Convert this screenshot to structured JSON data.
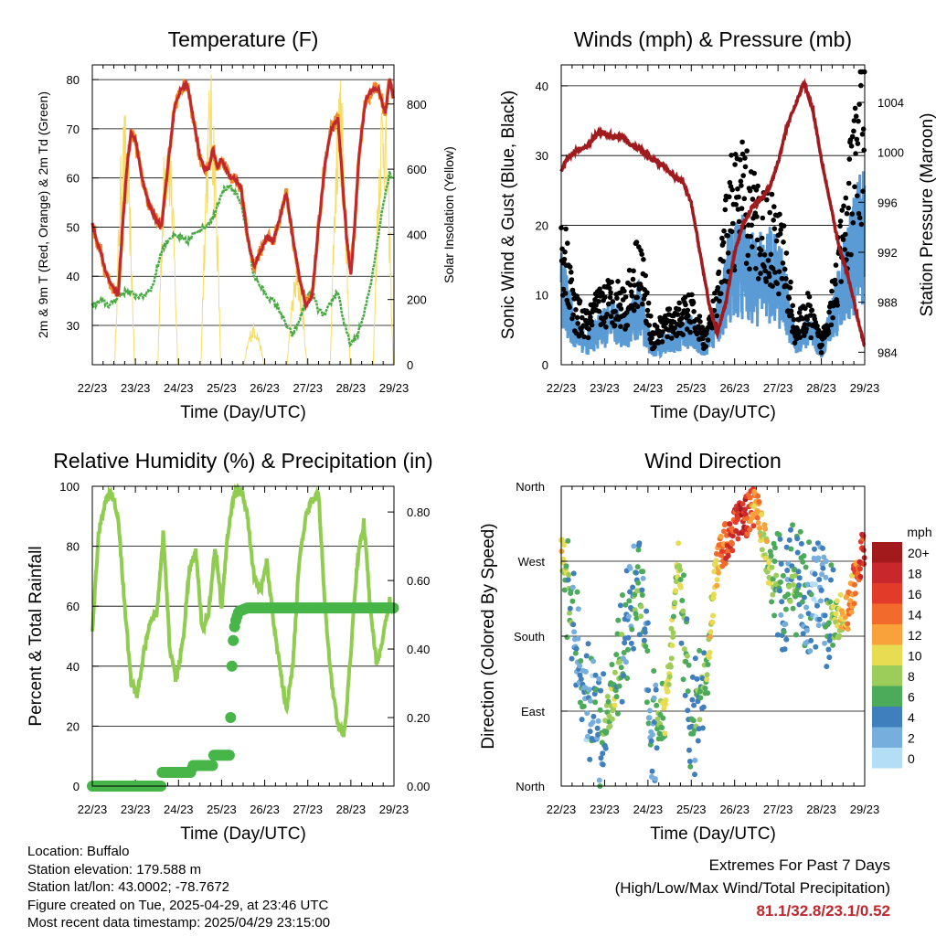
{
  "x_ticks": [
    "22/23",
    "23/23",
    "24/23",
    "25/23",
    "26/23",
    "27/23",
    "28/23",
    "29/23"
  ],
  "colors": {
    "t2m": "#c0282d",
    "t9m": "#f08a24",
    "td": "#4aab45",
    "solar": "#f5dd6a",
    "wind": "#5b9bd5",
    "gust": "#000000",
    "pressure": "#a11a1d",
    "rh": "#8fcc4f",
    "precip": "#47b548",
    "extremes": "#c1272d"
  },
  "chart_data": [
    {
      "type": "line",
      "title": "Temperature (F)",
      "xlabel": "Time (Day/UTC)",
      "ylabel": "2m & 9m T (Red, Orange) & 2m Td (Green)",
      "y2label": "Solar Insolation (Yellow)",
      "ylim": [
        22,
        83
      ],
      "y_ticks": [
        30,
        40,
        50,
        60,
        70,
        80
      ],
      "y2lim": [
        0,
        920
      ],
      "y2_ticks": [
        0,
        200,
        400,
        600,
        800
      ],
      "grid": "horizontal",
      "series": [
        {
          "key": "temperature",
          "x": [
            0,
            0.1,
            0.2,
            0.3,
            0.45,
            0.6,
            0.7,
            0.8,
            0.9,
            1.0,
            1.15,
            1.3,
            1.45,
            1.6,
            1.75,
            1.9,
            2.05,
            2.2,
            2.35,
            2.5,
            2.6,
            2.7,
            2.8,
            2.9,
            3.0,
            3.1,
            3.2,
            3.3,
            3.45,
            3.6,
            3.75,
            3.9,
            4.05,
            4.2,
            4.35,
            4.5,
            4.65,
            4.8,
            4.95,
            5.1,
            5.25,
            5.4,
            5.55,
            5.7,
            5.8,
            5.9,
            6.0,
            6.1,
            6.2,
            6.35,
            6.5,
            6.65,
            6.8,
            6.9,
            7.0
          ],
          "values": [
            51,
            47,
            45,
            41,
            38,
            36,
            50,
            62,
            69,
            68,
            60,
            55,
            52,
            50,
            62,
            74,
            78,
            79,
            72,
            64,
            62,
            62,
            66,
            62,
            64,
            62,
            60,
            60,
            58,
            48,
            42,
            45,
            48,
            47,
            52,
            57,
            48,
            40,
            34,
            36,
            50,
            63,
            70,
            72,
            60,
            48,
            40,
            52,
            66,
            76,
            78,
            78,
            73,
            80,
            76
          ]
        },
        {
          "key": "dewpoint",
          "x": [
            0,
            0.2,
            0.4,
            0.6,
            0.8,
            1.0,
            1.2,
            1.4,
            1.6,
            1.8,
            2.0,
            2.2,
            2.4,
            2.6,
            2.8,
            3.0,
            3.1,
            3.2,
            3.3,
            3.45,
            3.6,
            3.75,
            3.9,
            4.05,
            4.2,
            4.35,
            4.5,
            4.65,
            4.8,
            4.95,
            5.1,
            5.25,
            5.4,
            5.55,
            5.7,
            5.85,
            6.0,
            6.15,
            6.3,
            6.45,
            6.6,
            6.75,
            6.9,
            7.0
          ],
          "values": [
            34,
            35,
            34,
            36,
            37,
            36,
            36,
            38,
            45,
            48,
            48,
            47,
            49,
            50,
            52,
            57,
            58,
            58,
            57,
            55,
            48,
            40,
            38,
            36,
            35,
            33,
            30,
            28,
            31,
            35,
            37,
            33,
            32,
            35,
            37,
            30,
            26,
            28,
            32,
            38,
            46,
            55,
            61,
            60
          ]
        },
        {
          "key": "solar",
          "description": "daily insolation peaks",
          "values": [
            790,
            800,
            900,
            130,
            300,
            890,
            880,
            650
          ]
        }
      ]
    },
    {
      "type": "line",
      "title": "Winds (mph) & Pressure (mb)",
      "xlabel": "Time (Day/UTC)",
      "ylabel": "Sonic Wind & Gust (Blue, Black)",
      "y2label": "Station Pressure (Maroon)",
      "ylim": [
        0,
        43
      ],
      "y_ticks": [
        0,
        10,
        20,
        30,
        40
      ],
      "y2lim": [
        983,
        1007
      ],
      "y2_ticks": [
        984,
        988,
        992,
        996,
        1000,
        1004
      ],
      "grid": "horizontal",
      "series": [
        {
          "key": "pressure",
          "x": [
            0,
            0.2,
            0.4,
            0.6,
            0.8,
            1.0,
            1.2,
            1.4,
            1.6,
            1.8,
            2.0,
            2.2,
            2.4,
            2.6,
            2.8,
            3.0,
            3.2,
            3.4,
            3.6,
            3.8,
            4.0,
            4.2,
            4.4,
            4.6,
            4.8,
            5.0,
            5.2,
            5.4,
            5.6,
            5.8,
            6.0,
            6.2,
            6.4,
            6.6,
            6.8,
            7.0
          ],
          "values": [
            998.5,
            999.8,
            1000.2,
            1000.5,
            1001.4,
            1001.6,
            1001.2,
            1001.3,
            1000.6,
            1000.3,
            999.7,
            999.2,
            998.8,
            998,
            997.7,
            995.9,
            992,
            988,
            985.5,
            988,
            992,
            994.3,
            995.6,
            996.3,
            997.1,
            999.2,
            1002,
            1003.8,
            1005.6,
            1003.5,
            999.5,
            996,
            992.5,
            990.3,
            987.3,
            984.4
          ]
        },
        {
          "key": "wind",
          "x": [
            0,
            0.3,
            0.6,
            0.9,
            1.2,
            1.5,
            1.8,
            2.1,
            2.4,
            2.7,
            3.0,
            3.3,
            3.6,
            3.9,
            4.2,
            4.5,
            4.8,
            5.1,
            5.4,
            5.7,
            6.0,
            6.3,
            6.6,
            6.9,
            7.0
          ],
          "values": [
            11,
            5,
            3,
            5,
            6,
            5,
            8,
            2,
            3,
            4,
            5,
            2,
            6,
            13,
            14,
            12,
            13,
            11,
            3,
            5,
            2,
            8,
            13,
            18,
            20
          ]
        },
        {
          "key": "gust",
          "x": [
            0,
            0.3,
            0.6,
            0.9,
            1.2,
            1.5,
            1.8,
            2.1,
            2.4,
            2.7,
            3.0,
            3.3,
            3.6,
            3.9,
            4.2,
            4.5,
            4.8,
            5.1,
            5.4,
            5.7,
            6.0,
            6.3,
            6.6,
            6.9,
            7.0
          ],
          "values": [
            19,
            8,
            6,
            9,
            10,
            9,
            16,
            4,
            6,
            7,
            8,
            4,
            9,
            24,
            25,
            21,
            20,
            17,
            5,
            8,
            3,
            12,
            22,
            35,
            40
          ]
        }
      ]
    },
    {
      "type": "line",
      "title": "Relative Humidity (%) & Precipitation (in)",
      "xlabel": "Time (Day/UTC)",
      "ylabel": "Percent & Total Rainfall",
      "ylim": [
        0,
        100
      ],
      "y_ticks": [
        0,
        20,
        40,
        60,
        80,
        100
      ],
      "y2lim": [
        0,
        0.875
      ],
      "y2_ticks": [
        "0.00",
        "0.20",
        "0.40",
        "0.60",
        "0.80"
      ],
      "grid": "horizontal",
      "series": [
        {
          "key": "rh",
          "x": [
            0,
            0.15,
            0.3,
            0.45,
            0.6,
            0.75,
            0.9,
            1.05,
            1.2,
            1.35,
            1.5,
            1.65,
            1.8,
            1.95,
            2.1,
            2.25,
            2.4,
            2.55,
            2.7,
            2.85,
            3.0,
            3.15,
            3.3,
            3.45,
            3.6,
            3.75,
            3.9,
            4.05,
            4.2,
            4.35,
            4.5,
            4.65,
            4.8,
            4.95,
            5.1,
            5.25,
            5.4,
            5.55,
            5.7,
            5.85,
            6.0,
            6.15,
            6.3,
            6.45,
            6.6,
            6.75,
            6.9,
            7.0
          ],
          "values": [
            52,
            85,
            95,
            98,
            90,
            60,
            35,
            30,
            45,
            55,
            58,
            85,
            45,
            35,
            48,
            72,
            78,
            52,
            58,
            80,
            60,
            85,
            98,
            99,
            90,
            70,
            65,
            75,
            55,
            40,
            25,
            40,
            75,
            90,
            95,
            98,
            60,
            35,
            20,
            17,
            45,
            75,
            88,
            60,
            40,
            50,
            62,
            58
          ]
        },
        {
          "key": "precip",
          "x": [
            0,
            1.6,
            1.62,
            2.3,
            2.32,
            2.8,
            2.82,
            3.18,
            3.2,
            3.24,
            3.28,
            3.32,
            3.4,
            3.6,
            7.0
          ],
          "values": [
            0,
            0,
            0.04,
            0.04,
            0.06,
            0.06,
            0.09,
            0.09,
            0.15,
            0.35,
            0.45,
            0.48,
            0.51,
            0.52,
            0.52
          ]
        }
      ]
    },
    {
      "type": "scatter",
      "title": "Wind Direction",
      "xlabel": "Time (Day/UTC)",
      "ylabel": "Direction (Colored By Speed)",
      "y_ticks": [
        "North",
        "East",
        "South",
        "West",
        "North"
      ],
      "ylim": [
        0,
        360
      ],
      "colorbar": {
        "unit": "mph",
        "labels": [
          "20+",
          "18",
          "16",
          "14",
          "12",
          "10",
          "8",
          "6",
          "4",
          "2",
          "0"
        ],
        "colors": [
          "#a31a1d",
          "#c8282b",
          "#e33b2a",
          "#f36b2c",
          "#f9a23c",
          "#e8dc52",
          "#9ccc5a",
          "#4caa5b",
          "#3f7fbd",
          "#76aedd",
          "#b4def5"
        ]
      },
      "series": [
        {
          "key": "direction",
          "x": [
            0,
            0.3,
            0.6,
            0.9,
            1.2,
            1.5,
            1.8,
            2.1,
            2.4,
            2.7,
            3.0,
            3.3,
            3.6,
            3.9,
            4.2,
            4.5,
            4.8,
            5.1,
            5.4,
            5.7,
            6.0,
            6.3,
            6.6,
            6.9,
            7.0
          ],
          "values": [
            285,
            190,
            110,
            60,
            100,
            190,
            250,
            70,
            85,
            270,
            70,
            120,
            270,
            305,
            320,
            340,
            260,
            230,
            250,
            230,
            220,
            200,
            210,
            270,
            290
          ],
          "speed": [
            10,
            4,
            3,
            4,
            8,
            4,
            6,
            3,
            9,
            8,
            4,
            6,
            12,
            16,
            18,
            12,
            9,
            4,
            6,
            3,
            2,
            8,
            12,
            16,
            18
          ]
        }
      ]
    }
  ],
  "station_info": [
    "Location: Buffalo",
    "Station elevation: 179.588 m",
    "Station lat/lon: 43.0002; -78.7672",
    "Figure created on Tue, 2025-04-29, at 23:46 UTC",
    "Most recent data timestamp: 2025/04/29 23:15:00"
  ],
  "extremes": {
    "title": "Extremes For Past 7 Days",
    "subtitle": "(High/Low/Max Wind/Total Precipitation)",
    "values": "81.1/32.8/23.1/0.52"
  }
}
